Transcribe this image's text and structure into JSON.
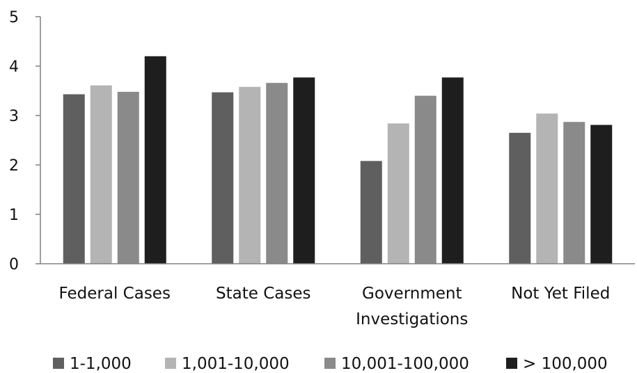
{
  "chart_data": {
    "type": "bar",
    "title": "",
    "xlabel": "",
    "ylabel": "",
    "ylim": [
      0,
      5
    ],
    "yticks": [
      0,
      1,
      2,
      3,
      4,
      5
    ],
    "grid": false,
    "legend_position": "bottom",
    "categories": [
      [
        "Federal Cases"
      ],
      [
        "State Cases"
      ],
      [
        "Government",
        "Investigations"
      ],
      [
        "Not Yet Filed"
      ]
    ],
    "series": [
      {
        "name": "1-1,000",
        "color": "#5f5f5f",
        "values": [
          3.43,
          3.47,
          2.08,
          2.65
        ]
      },
      {
        "name": "1,001-10,000",
        "color": "#b4b4b4",
        "values": [
          3.61,
          3.58,
          2.84,
          3.04
        ]
      },
      {
        "name": "10,001-100,000",
        "color": "#8a8a8a",
        "values": [
          3.48,
          3.66,
          3.4,
          2.87
        ]
      },
      {
        "name": "> 100,000",
        "color": "#1e1e1e",
        "values": [
          4.2,
          3.77,
          3.77,
          2.81
        ]
      }
    ]
  }
}
